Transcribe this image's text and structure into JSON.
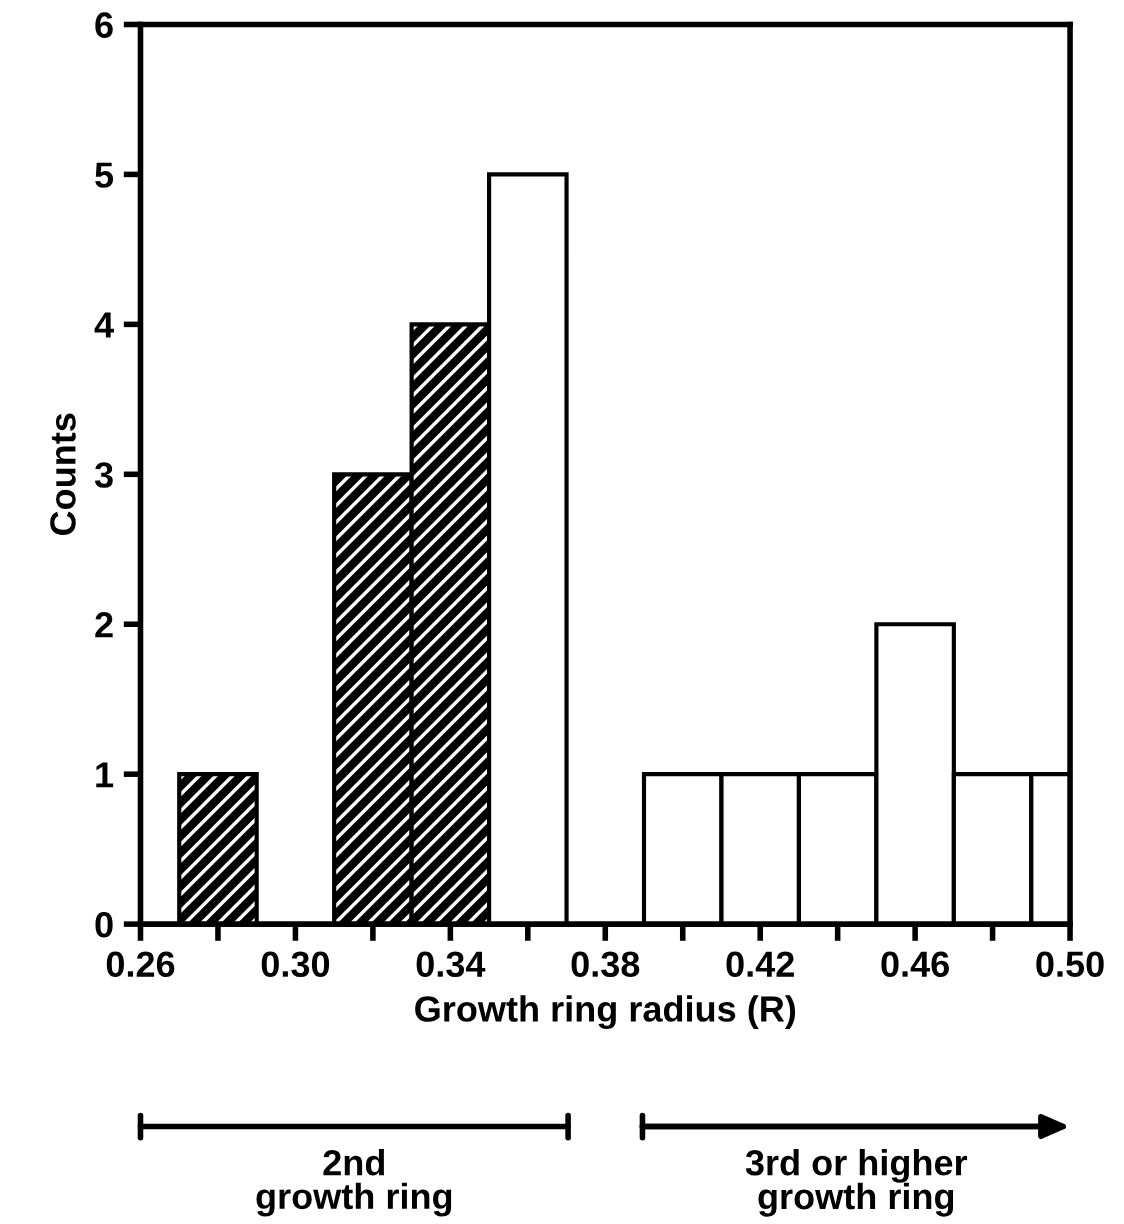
{
  "chart_data": {
    "type": "histogram",
    "xlabel": "Growth ring radius (R)",
    "ylabel": "Counts",
    "bins": [
      0.27,
      0.29,
      0.31,
      0.33,
      0.35,
      0.37,
      0.39,
      0.41,
      0.43,
      0.45,
      0.47,
      0.49,
      0.5
    ],
    "series": [
      {
        "color": "#000000",
        "values": [
          1,
          0,
          3,
          4,
          null,
          null,
          null,
          null,
          null,
          null,
          null,
          null
        ]
      },
      {
        "color": "#ffffff",
        "values": [
          null,
          null,
          null,
          null,
          5,
          0,
          1,
          1,
          1,
          2,
          1,
          1
        ]
      }
    ],
    "xlim": [
      0.26,
      0.5
    ],
    "xticks": [
      {
        "value": 0.26,
        "label": "0.26"
      },
      {
        "value": 0.28,
        "label": null
      },
      {
        "value": 0.3,
        "label": "0.30"
      },
      {
        "value": 0.32,
        "label": null
      },
      {
        "value": 0.34,
        "label": "0.34"
      },
      {
        "value": 0.36,
        "label": null
      },
      {
        "value": 0.38,
        "label": "0.38"
      },
      {
        "value": 0.4,
        "label": null
      },
      {
        "value": 0.42,
        "label": "0.42"
      },
      {
        "value": 0.44,
        "label": null
      },
      {
        "value": 0.46,
        "label": "0.46"
      },
      {
        "value": 0.48,
        "label": null
      },
      {
        "value": 0.5,
        "label": "0.50"
      }
    ],
    "ylim": [
      0,
      6
    ],
    "yticks": [
      0,
      1,
      2,
      3,
      4,
      5,
      6
    ],
    "annotations": [
      "2nd\ngrowth ring",
      "3rd or higher\ngrowth ring"
    ],
    "grid": false,
    "legend": false
  }
}
